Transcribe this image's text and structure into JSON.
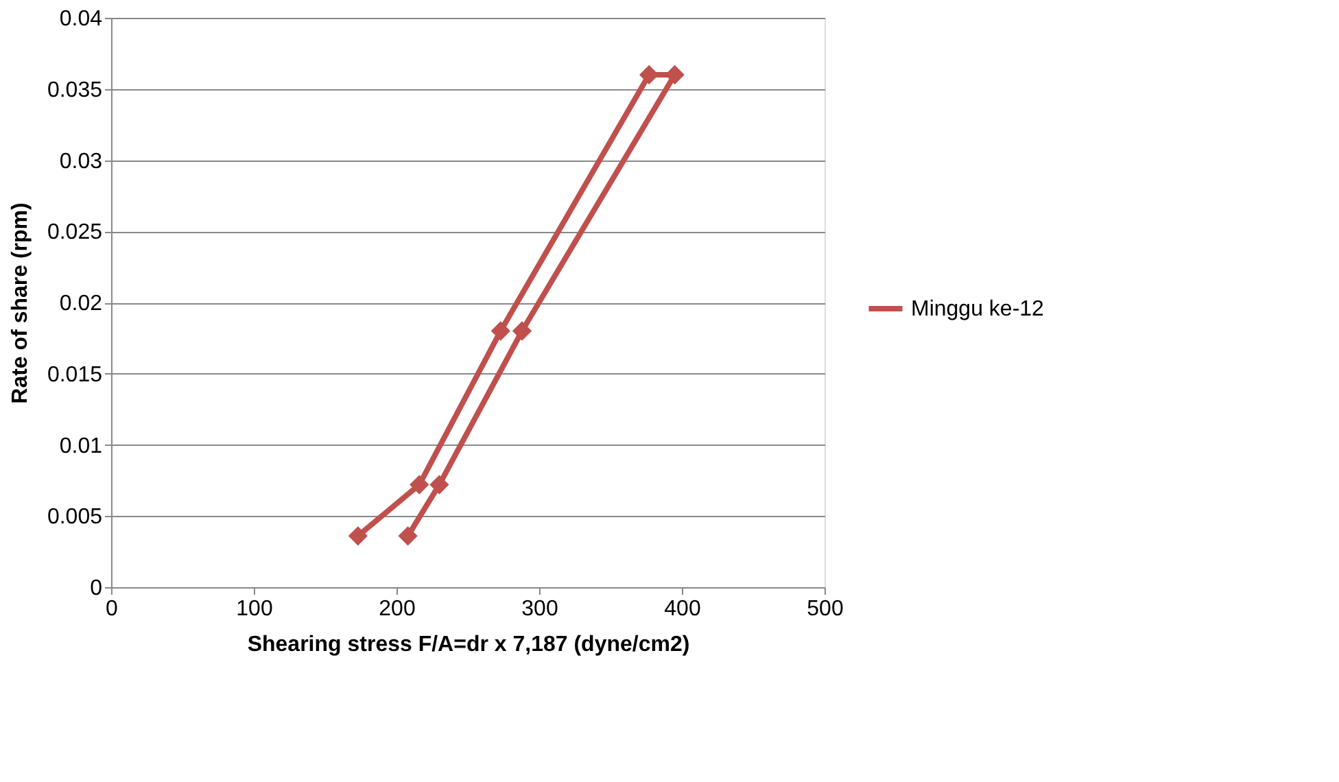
{
  "chart_data": {
    "type": "line",
    "xlabel": "Shearing stress F/A=dr x 7,187 (dyne/cm2)",
    "ylabel": "Rate of share (rpm)",
    "x": [
      173,
      216,
      273,
      377,
      395,
      288,
      230,
      208
    ],
    "series": [
      {
        "name": "Minggu ke-12",
        "color": "#c0504d",
        "values": [
          0.0036,
          0.0072,
          0.018,
          0.036,
          0.036,
          0.018,
          0.0072,
          0.0036
        ]
      }
    ],
    "xlim": [
      0,
      500
    ],
    "xticks": [
      0,
      100,
      200,
      300,
      400,
      500
    ],
    "ylim": [
      0,
      0.04
    ],
    "yticks": [
      0,
      0.005,
      0.01,
      0.015,
      0.02,
      0.025,
      0.03,
      0.035,
      0.04
    ],
    "grid": "y",
    "legend": "right",
    "marker": "diamond",
    "line_style": "solid"
  }
}
